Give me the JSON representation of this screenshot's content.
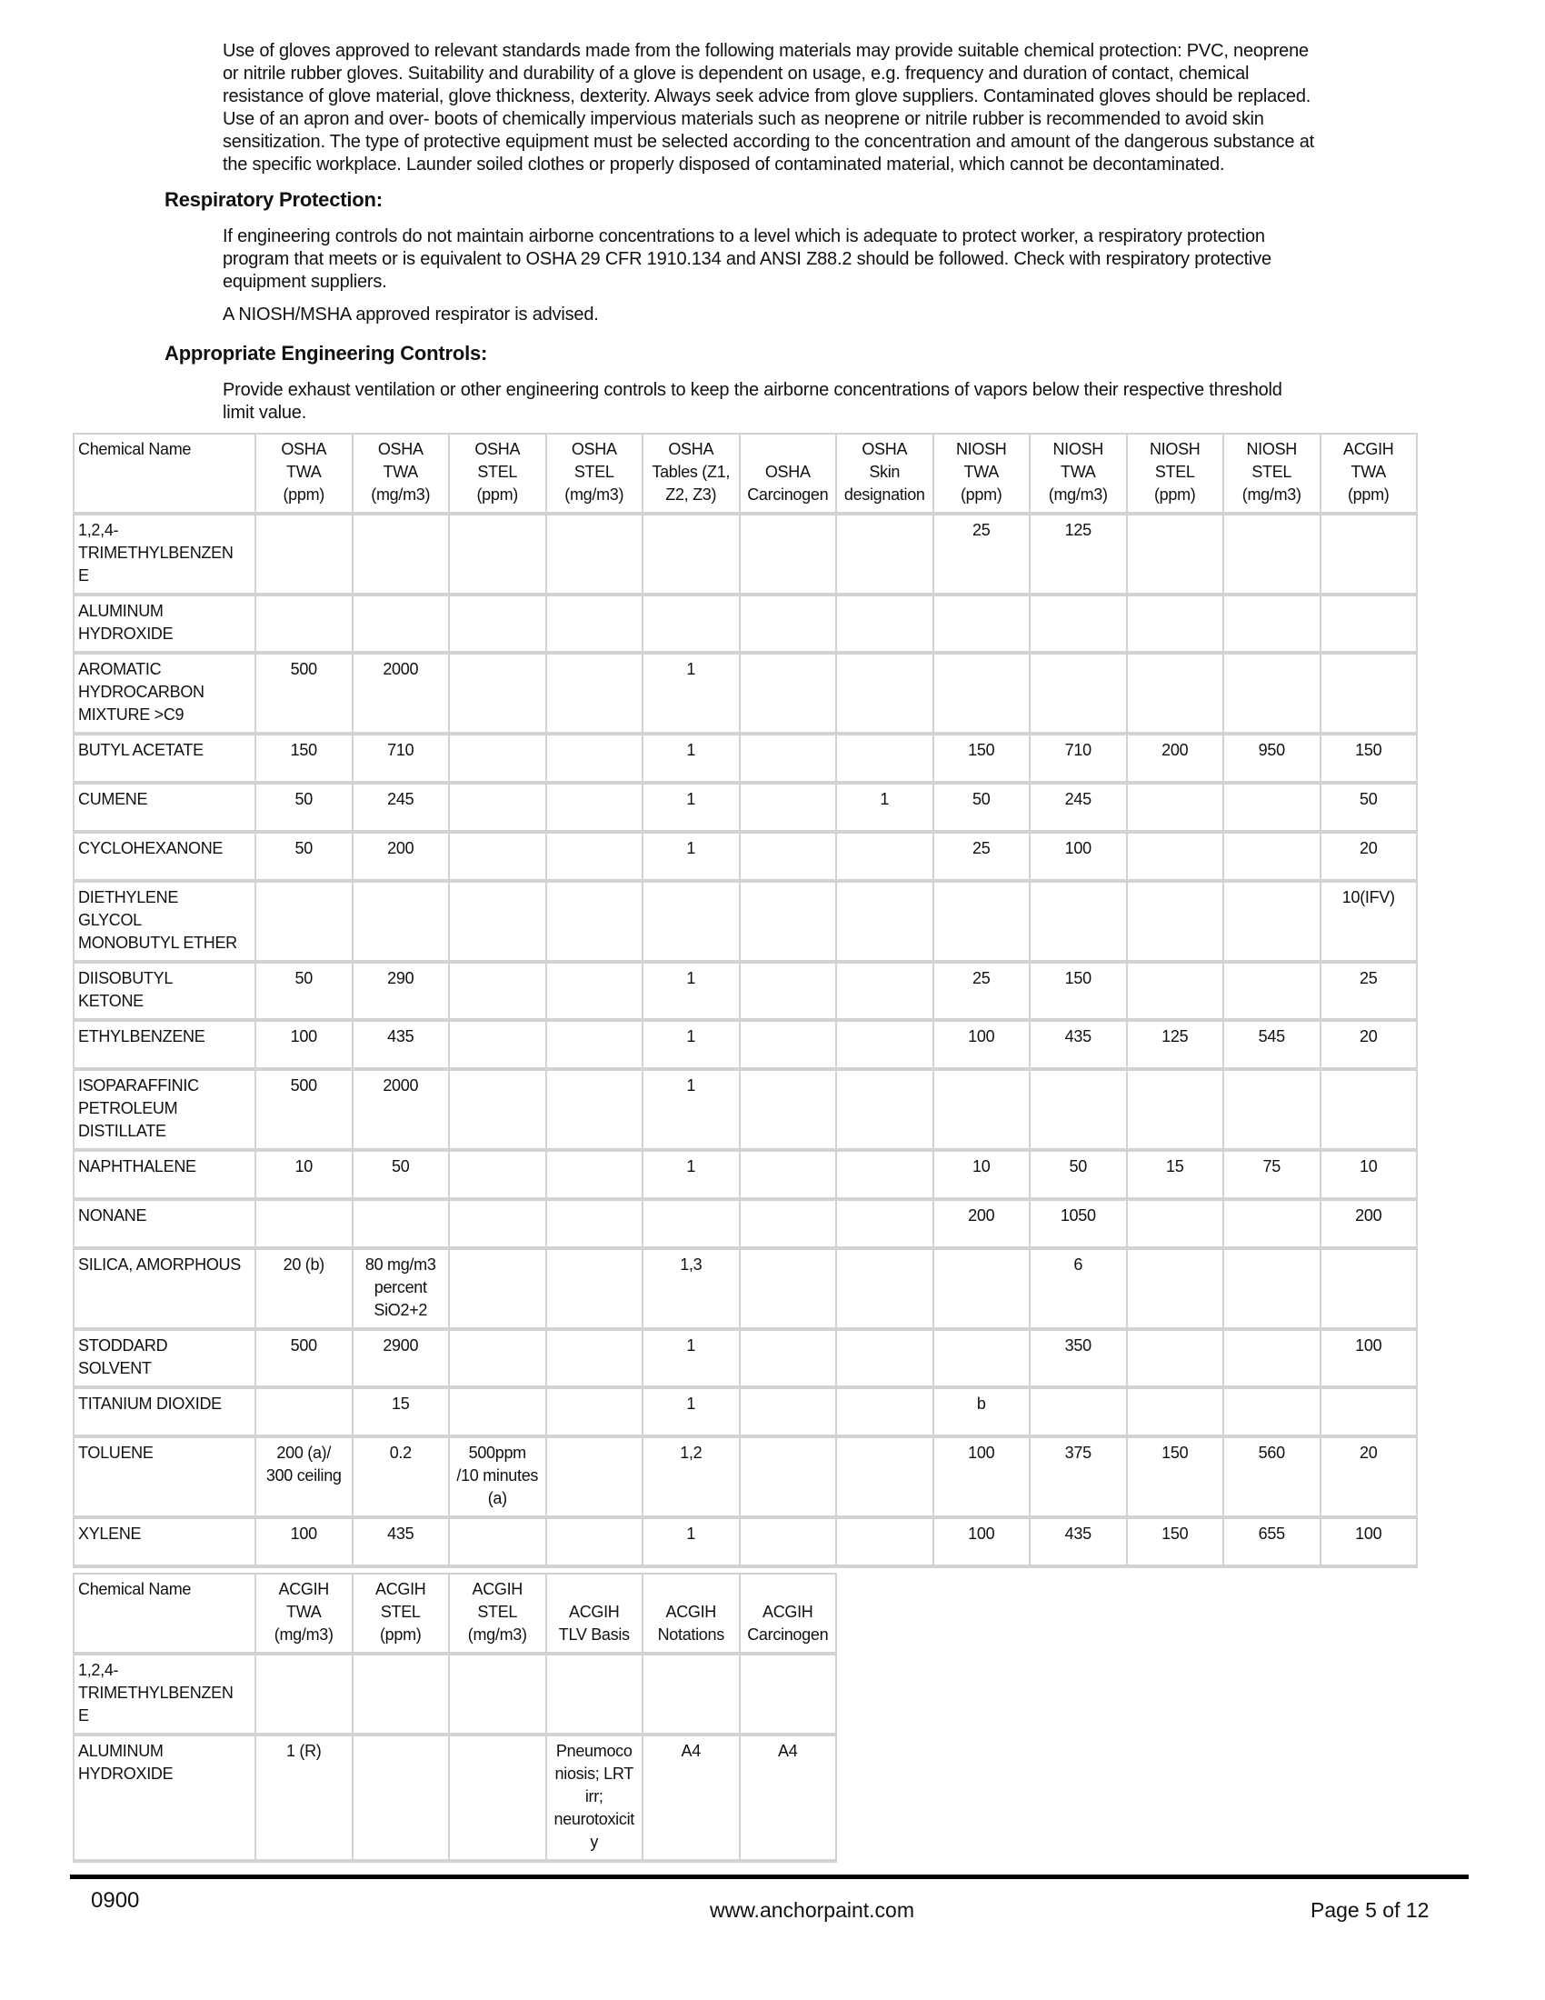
{
  "sections": {
    "gloves_text": "Use of gloves approved to relevant standards made from the following materials may provide suitable chemical protection: PVC, neoprene\nor nitrile rubber gloves. Suitability and durability of a glove is dependent on usage, e.g. frequency and duration of contact, chemical\nresistance of glove material, glove thickness, dexterity. Always seek advice from glove suppliers. Contaminated gloves should be replaced.\nUse of an apron and over- boots of chemically impervious materials such as neoprene or nitrile rubber is recommended to avoid skin\nsensitization. The type of protective equipment must be selected according to the concentration and amount of the dangerous substance at\nthe specific workplace. Launder soiled clothes or properly disposed of contaminated material, which cannot be decontaminated.",
    "respiratory_heading": "Respiratory Protection:",
    "respiratory_text": "If engineering controls do not maintain airborne concentrations to a level which is adequate to protect worker, a respiratory protection\nprogram that meets or is equivalent to OSHA 29 CFR 1910.134 and ANSI Z88.2 should be followed. Check with respiratory protective\nequipment suppliers.",
    "respirator_note": "A NIOSH/MSHA approved respirator is advised.",
    "engineering_heading": "Appropriate Engineering Controls:",
    "engineering_text": "Provide exhaust ventilation or other engineering controls to keep the airborne concentrations of vapors below their respective threshold\nlimit value."
  },
  "table1": {
    "headers": [
      "Chemical Name",
      "OSHA\nTWA\n(ppm)",
      "OSHA\nTWA\n(mg/m3)",
      "OSHA\nSTEL\n(ppm)",
      "OSHA\nSTEL\n(mg/m3)",
      "OSHA\nTables (Z1,\nZ2, Z3)",
      "\nOSHA\nCarcinogen",
      "OSHA\nSkin\ndesignation",
      "NIOSH\nTWA\n(ppm)",
      "NIOSH\nTWA\n(mg/m3)",
      "NIOSH\nSTEL\n(ppm)",
      "NIOSH\nSTEL\n(mg/m3)",
      "ACGIH\nTWA\n(ppm)"
    ],
    "rows": [
      [
        "1,2,4-\nTRIMETHYLBENZEN\nE",
        "",
        "",
        "",
        "",
        "",
        "",
        "",
        "25",
        "125",
        "",
        "",
        ""
      ],
      [
        "ALUMINUM\nHYDROXIDE",
        "",
        "",
        "",
        "",
        "",
        "",
        "",
        "",
        "",
        "",
        "",
        ""
      ],
      [
        "AROMATIC\nHYDROCARBON\nMIXTURE >C9",
        "500",
        "2000",
        "",
        "",
        "1",
        "",
        "",
        "",
        "",
        "",
        "",
        ""
      ],
      [
        "BUTYL ACETATE",
        "150",
        "710",
        "",
        "",
        "1",
        "",
        "",
        "150",
        "710",
        "200",
        "950",
        "150"
      ],
      [
        "CUMENE",
        "50",
        "245",
        "",
        "",
        "1",
        "",
        "1",
        "50",
        "245",
        "",
        "",
        "50"
      ],
      [
        "CYCLOHEXANONE",
        "50",
        "200",
        "",
        "",
        "1",
        "",
        "",
        "25",
        "100",
        "",
        "",
        "20"
      ],
      [
        "DIETHYLENE\nGLYCOL\nMONOBUTYL ETHER",
        "",
        "",
        "",
        "",
        "",
        "",
        "",
        "",
        "",
        "",
        "",
        "10(IFV)"
      ],
      [
        "DIISOBUTYL\nKETONE",
        "50",
        "290",
        "",
        "",
        "1",
        "",
        "",
        "25",
        "150",
        "",
        "",
        "25"
      ],
      [
        "ETHYLBENZENE",
        "100",
        "435",
        "",
        "",
        "1",
        "",
        "",
        "100",
        "435",
        "125",
        "545",
        "20"
      ],
      [
        "ISOPARAFFINIC\nPETROLEUM\nDISTILLATE",
        "500",
        "2000",
        "",
        "",
        "1",
        "",
        "",
        "",
        "",
        "",
        "",
        ""
      ],
      [
        "NAPHTHALENE",
        "10",
        "50",
        "",
        "",
        "1",
        "",
        "",
        "10",
        "50",
        "15",
        "75",
        "10"
      ],
      [
        "NONANE",
        "",
        "",
        "",
        "",
        "",
        "",
        "",
        "200",
        "1050",
        "",
        "",
        "200"
      ],
      [
        "SILICA, AMORPHOUS",
        "20 (b)",
        "80 mg/m3\npercent\nSiO2+2",
        "",
        "",
        "1,3",
        "",
        "",
        "",
        "6",
        "",
        "",
        ""
      ],
      [
        "STODDARD\nSOLVENT",
        "500",
        "2900",
        "",
        "",
        "1",
        "",
        "",
        "",
        "350",
        "",
        "",
        "100"
      ],
      [
        "TITANIUM DIOXIDE",
        "",
        "15",
        "",
        "",
        "1",
        "",
        "",
        "b",
        "",
        "",
        "",
        ""
      ],
      [
        "TOLUENE",
        "200 (a)/\n300 ceiling",
        "0.2",
        "500ppm\n/10 minutes\n(a)",
        "",
        "1,2",
        "",
        "",
        "100",
        "375",
        "150",
        "560",
        "20"
      ],
      [
        "XYLENE",
        "100",
        "435",
        "",
        "",
        "1",
        "",
        "",
        "100",
        "435",
        "150",
        "655",
        "100"
      ]
    ]
  },
  "table2": {
    "headers": [
      "Chemical Name",
      "ACGIH\nTWA\n(mg/m3)",
      "ACGIH\nSTEL\n(ppm)",
      "ACGIH\nSTEL\n(mg/m3)",
      "\nACGIH\nTLV Basis",
      "\nACGIH\nNotations",
      "\nACGIH\nCarcinogen"
    ],
    "rows": [
      [
        "1,2,4-\nTRIMETHYLBENZEN\nE",
        "",
        "",
        "",
        "",
        "",
        ""
      ],
      [
        "ALUMINUM\nHYDROXIDE",
        "1 (R)",
        "",
        "",
        "Pneumoco\nniosis; LRT\nirr;\nneurotoxicit\ny",
        "A4",
        "A4"
      ]
    ]
  },
  "footer": {
    "code": "0900",
    "website": "www.anchorpaint.com",
    "page": "Page 5 of 12"
  }
}
